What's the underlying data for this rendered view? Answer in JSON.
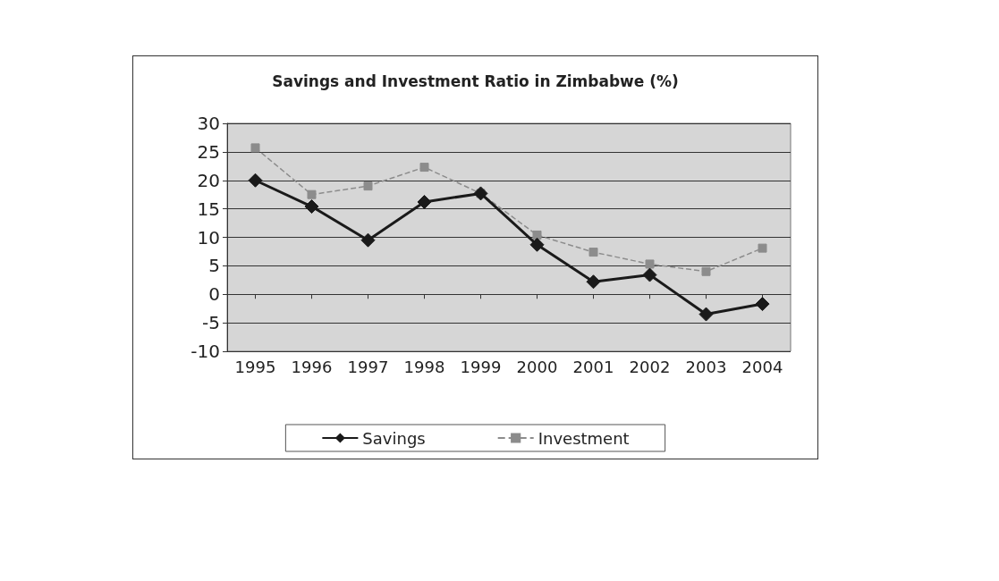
{
  "chart_data": {
    "type": "line",
    "title": "Savings and Investment Ratio in Zimbabwe (%)",
    "categories": [
      "1995",
      "1996",
      "1997",
      "1998",
      "1999",
      "2000",
      "2001",
      "2002",
      "2003",
      "2004"
    ],
    "series": [
      {
        "name": "Savings",
        "color": "#1a1a1a",
        "marker": "diamond",
        "line_style": "solid",
        "values": [
          20.0,
          15.4,
          9.5,
          16.2,
          17.7,
          8.7,
          2.2,
          3.4,
          -3.5,
          -1.7
        ]
      },
      {
        "name": "Investment",
        "color": "#8c8c8c",
        "marker": "square",
        "line_style": "dashed",
        "values": [
          25.7,
          17.5,
          19.0,
          22.3,
          17.7,
          10.4,
          7.4,
          5.3,
          4.0,
          8.1
        ]
      }
    ],
    "ylim": [
      -10,
      30
    ],
    "yticks": [
      -10,
      -5,
      0,
      5,
      10,
      15,
      20,
      25,
      30
    ],
    "grid": "y",
    "legend": "bottom"
  }
}
